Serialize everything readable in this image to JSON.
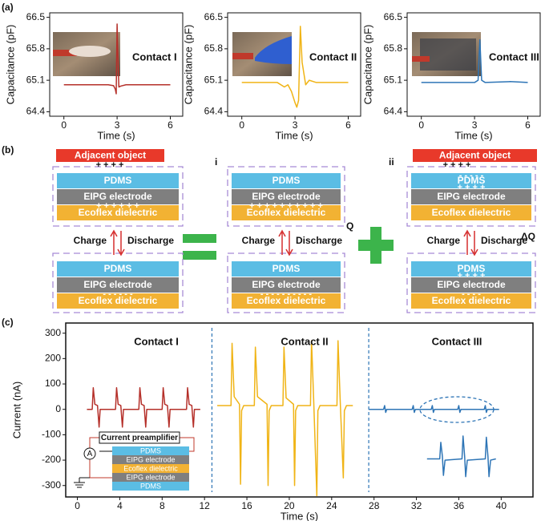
{
  "panel_labels": [
    "(a)",
    "(b)",
    "(c)"
  ],
  "chart_data": [
    {
      "type": "line",
      "annotation": "Contact I",
      "xlabel": "Time (s)",
      "ylabel": "Capacitance (pF)",
      "xlim": [
        -0.8,
        6.7
      ],
      "ylim": [
        64.3,
        66.6
      ],
      "xticks": [
        0,
        3,
        6
      ],
      "yticks": [
        64.4,
        65.1,
        65.8,
        66.5
      ],
      "series": [
        {
          "color": "#b5302a",
          "x": [
            0,
            1.5,
            2.5,
            2.8,
            2.9,
            2.95,
            3.0,
            3.05,
            3.1,
            3.2,
            3.5,
            4,
            5,
            6
          ],
          "values": [
            65.0,
            65.0,
            65.0,
            64.98,
            64.9,
            64.8,
            66.35,
            65.6,
            64.95,
            64.97,
            65.0,
            65.0,
            65.0,
            65.0
          ]
        }
      ]
    },
    {
      "type": "line",
      "annotation": "Contact II",
      "xlabel": "Time (s)",
      "ylabel": "Capacitance (pF)",
      "xlim": [
        -0.8,
        6.7
      ],
      "ylim": [
        64.3,
        66.6
      ],
      "xticks": [
        0,
        3,
        6
      ],
      "yticks": [
        64.4,
        65.1,
        65.8,
        66.5
      ],
      "series": [
        {
          "color": "#f0b416",
          "x": [
            0,
            1.0,
            2.0,
            2.4,
            2.6,
            2.8,
            3.0,
            3.1,
            3.2,
            3.3,
            3.4,
            3.6,
            3.8,
            4.2,
            5,
            6
          ],
          "values": [
            65.05,
            65.05,
            65.05,
            64.95,
            65.0,
            64.85,
            64.6,
            64.5,
            64.65,
            66.3,
            65.5,
            65.0,
            65.1,
            65.05,
            65.05,
            65.05
          ]
        }
      ]
    },
    {
      "type": "line",
      "annotation": "Contact III",
      "xlabel": "Time (s)",
      "ylabel": "Capacitance (pF)",
      "xlim": [
        -0.8,
        6.7
      ],
      "ylim": [
        64.3,
        66.6
      ],
      "xticks": [
        0,
        3,
        6
      ],
      "yticks": [
        64.4,
        65.1,
        65.8,
        66.5
      ],
      "series": [
        {
          "color": "#2e75b6",
          "x": [
            0,
            1.5,
            3.0,
            3.2,
            3.3,
            3.4,
            3.6,
            5,
            6
          ],
          "values": [
            65.05,
            65.05,
            65.05,
            65.1,
            66.0,
            65.1,
            65.05,
            65.07,
            65.05
          ]
        }
      ]
    },
    {
      "type": "line",
      "xlabel": "Time (s)",
      "ylabel": "Current (nA)",
      "xlim": [
        -1.1,
        43
      ],
      "ylim": [
        -345,
        340
      ],
      "xticks": [
        0,
        4,
        8,
        12,
        16,
        20,
        24,
        28,
        32,
        36,
        40
      ],
      "yticks": [
        -300,
        -200,
        -100,
        0,
        100,
        200,
        300
      ],
      "annotations": [
        "Contact I",
        "Contact II",
        "Contact III"
      ],
      "vlines": [
        12.7,
        27.5
      ],
      "series": [
        {
          "color": "#b5302a",
          "x": [
            0.9,
            1.4,
            1.5,
            1.65,
            1.9,
            2.05,
            2.15,
            3.6,
            3.7,
            3.85,
            4.1,
            4.25,
            4.35,
            5.8,
            5.9,
            6.05,
            6.3,
            6.45,
            6.55,
            8.0,
            8.1,
            8.25,
            8.5,
            8.65,
            8.75,
            10.3,
            10.4,
            10.55,
            10.8,
            10.95,
            11.05,
            11.6
          ],
          "values": [
            0,
            0,
            85,
            20,
            15,
            -70,
            0,
            0,
            85,
            20,
            15,
            -70,
            0,
            0,
            85,
            20,
            15,
            -70,
            0,
            0,
            85,
            20,
            15,
            -70,
            0,
            0,
            85,
            20,
            15,
            -70,
            0,
            0
          ]
        },
        {
          "color": "#f0b416",
          "x": [
            13.2,
            14.5,
            14.6,
            14.8,
            15.3,
            15.4,
            15.5,
            15.7,
            16.7,
            16.8,
            17.0,
            17.9,
            18.0,
            18.1,
            18.3,
            19.4,
            19.5,
            19.7,
            20.4,
            20.5,
            20.6,
            20.8,
            22.0,
            22.1,
            22.3,
            22.6,
            22.7,
            22.9,
            24.5,
            24.6,
            24.8,
            25.1,
            25.2,
            25.4,
            26.0
          ],
          "values": [
            15,
            15,
            260,
            50,
            20,
            -295,
            -5,
            15,
            15,
            245,
            50,
            20,
            -300,
            -5,
            15,
            15,
            245,
            45,
            20,
            -300,
            -5,
            15,
            15,
            270,
            40,
            -340,
            -5,
            15,
            15,
            270,
            40,
            -270,
            -5,
            15,
            15
          ]
        },
        {
          "color": "#2e75b6",
          "x": [
            27.5,
            28.9,
            29.0,
            29.1,
            29.2,
            31.6,
            31.7,
            31.8,
            31.9,
            33.4,
            33.5,
            33.6,
            33.7,
            35.9,
            36.0,
            36.1,
            36.2,
            38.4,
            38.5,
            38.6,
            38.7,
            39.8
          ],
          "values": [
            0,
            0,
            15,
            -12,
            0,
            0,
            15,
            -12,
            0,
            0,
            15,
            -12,
            0,
            0,
            15,
            -12,
            0,
            0,
            15,
            -12,
            0,
            0
          ]
        },
        {
          "color": "#2e75b6",
          "x": [
            33.0,
            34.2,
            34.3,
            34.45,
            34.55,
            34.7,
            36.3,
            36.4,
            36.55,
            36.65,
            36.8,
            38.5,
            38.6,
            38.75,
            38.85,
            39.0,
            39.5
          ],
          "values": [
            -195,
            -195,
            -130,
            -185,
            -260,
            -200,
            -195,
            -105,
            -185,
            -265,
            -200,
            -195,
            -110,
            -185,
            -265,
            -200,
            -195
          ]
        }
      ]
    }
  ],
  "diagram": {
    "objects": [
      "Adjacent object",
      "Adjacent object"
    ],
    "layers": [
      "PDMS",
      "EIPG electrode",
      "Ecoflex dielectric"
    ],
    "charge": "Charge",
    "discharge": "Discharge",
    "sub_labels": [
      "i",
      "ii"
    ],
    "quantities": [
      "Q",
      "ΔQ"
    ],
    "charges": [
      "+ + + +",
      "+ + + + + +",
      "- - - - - -",
      "+ + + + + + + + + +",
      "- - - - - - - - - -",
      "+ + + +",
      "- - - - -",
      "+ + + +",
      "+ + + +",
      "- - - -"
    ]
  },
  "circuit": {
    "title": "Current preamplifier",
    "meter": "A",
    "layers": [
      "PDMS",
      "EIPG electrode",
      "Ecoflex dielectric",
      "EIPG electrode",
      "PDMS"
    ]
  }
}
